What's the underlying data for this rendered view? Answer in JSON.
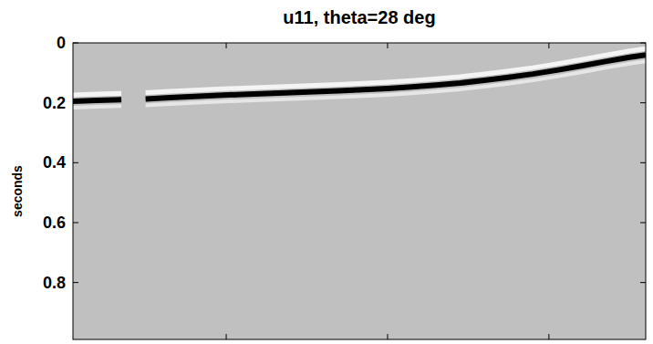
{
  "chart_data": {
    "type": "line",
    "title": "u11, theta=28 deg",
    "y_label": "seconds",
    "x": [
      1,
      4,
      7,
      8,
      10,
      13,
      16,
      19,
      22,
      25,
      28,
      31,
      34,
      37,
      40,
      43,
      46,
      49,
      52,
      55,
      58,
      61,
      64,
      67,
      70,
      72
    ],
    "values": [
      0.195,
      0.192,
      0.19,
      null,
      0.187,
      0.183,
      0.179,
      0.175,
      0.172,
      0.169,
      0.166,
      0.163,
      0.16,
      0.156,
      0.152,
      0.147,
      0.141,
      0.134,
      0.125,
      0.115,
      0.104,
      0.091,
      0.077,
      0.062,
      0.048,
      0.04
    ],
    "color": "#000000",
    "xlim": [
      1,
      72
    ],
    "xticks": [
      20,
      40,
      60
    ],
    "ylim": [
      0,
      0.99
    ],
    "yticks": [
      0,
      0.2,
      0.4,
      0.6,
      0.8
    ],
    "tick_labels": "y",
    "grid": false
  }
}
